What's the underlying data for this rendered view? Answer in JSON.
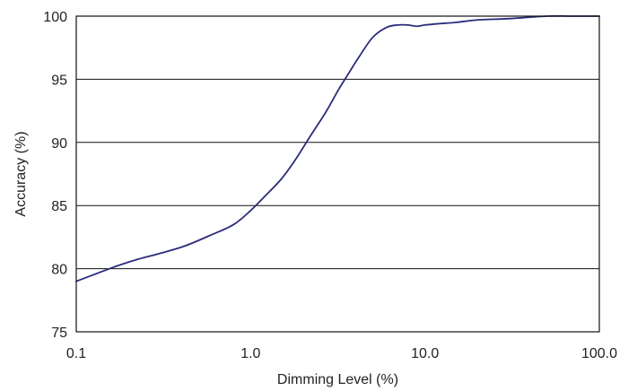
{
  "chart_data": {
    "type": "line",
    "title": "",
    "xlabel": "Dimming Level (%)",
    "ylabel": "Accuracy (%)",
    "xscale": "log",
    "xlim": [
      0.1,
      100
    ],
    "ylim": [
      75,
      100
    ],
    "xticks": [
      0.1,
      1.0,
      10.0,
      100.0
    ],
    "xtick_labels": [
      "0.1",
      "1.0",
      "10.0",
      "100.0"
    ],
    "yticks": [
      75,
      80,
      85,
      90,
      95,
      100
    ],
    "ytick_labels": [
      "75",
      "80",
      "85",
      "90",
      "95",
      "100"
    ],
    "grid": "horizontal",
    "line_color": "#2b2d7a",
    "series": [
      {
        "x": [
          0.1,
          0.13,
          0.17,
          0.22,
          0.3,
          0.42,
          0.6,
          0.8,
          1.0,
          1.2,
          1.5,
          1.8,
          2.2,
          2.7,
          3.2,
          3.7,
          4.2,
          5.0,
          6.0,
          7.0,
          8.0,
          9.0,
          10.0,
          12.0,
          15.0,
          20.0,
          30.0,
          50.0,
          70.0,
          100.0
        ],
        "y": [
          79.0,
          79.6,
          80.2,
          80.7,
          81.2,
          81.8,
          82.7,
          83.5,
          84.6,
          85.7,
          87.1,
          88.6,
          90.5,
          92.4,
          94.2,
          95.6,
          96.8,
          98.3,
          99.1,
          99.3,
          99.3,
          99.2,
          99.3,
          99.4,
          99.5,
          99.7,
          99.8,
          100.0,
          100.0,
          100.0
        ]
      }
    ]
  }
}
